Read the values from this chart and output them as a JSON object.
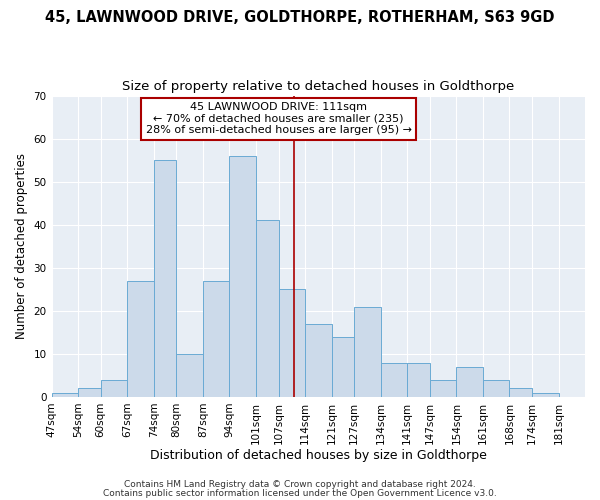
{
  "title": "45, LAWNWOOD DRIVE, GOLDTHORPE, ROTHERHAM, S63 9GD",
  "subtitle": "Size of property relative to detached houses in Goldthorpe",
  "xlabel": "Distribution of detached houses by size in Goldthorpe",
  "ylabel": "Number of detached properties",
  "bin_labels": [
    "47sqm",
    "54sqm",
    "60sqm",
    "67sqm",
    "74sqm",
    "80sqm",
    "87sqm",
    "94sqm",
    "101sqm",
    "107sqm",
    "114sqm",
    "121sqm",
    "127sqm",
    "134sqm",
    "141sqm",
    "147sqm",
    "154sqm",
    "161sqm",
    "168sqm",
    "174sqm",
    "181sqm"
  ],
  "bar_values": [
    1,
    2,
    4,
    27,
    55,
    10,
    27,
    56,
    41,
    25,
    17,
    14,
    21,
    8,
    8,
    4,
    7,
    4,
    2,
    1,
    0
  ],
  "bar_color": "#ccdaea",
  "bar_edgecolor": "#6aaad4",
  "vline_x": 111,
  "bin_edges": [
    47,
    54,
    60,
    67,
    74,
    80,
    87,
    94,
    101,
    107,
    114,
    121,
    127,
    134,
    141,
    147,
    154,
    161,
    168,
    174,
    181,
    188
  ],
  "ylim": [
    0,
    70
  ],
  "yticks": [
    0,
    10,
    20,
    30,
    40,
    50,
    60,
    70
  ],
  "annotation_title": "45 LAWNWOOD DRIVE: 111sqm",
  "annotation_line1": "← 70% of detached houses are smaller (235)",
  "annotation_line2": "28% of semi-detached houses are larger (95) →",
  "annotation_box_facecolor": "#ffffff",
  "annotation_box_edgecolor": "#aa0000",
  "vline_color": "#aa0000",
  "footer1": "Contains HM Land Registry data © Crown copyright and database right 2024.",
  "footer2": "Contains public sector information licensed under the Open Government Licence v3.0.",
  "background_color": "#ffffff",
  "plot_background_color": "#e8eef5",
  "grid_color": "#ffffff",
  "title_fontsize": 10.5,
  "subtitle_fontsize": 9.5,
  "xlabel_fontsize": 9,
  "ylabel_fontsize": 8.5,
  "tick_fontsize": 7.5,
  "annotation_fontsize": 8,
  "footer_fontsize": 6.5
}
